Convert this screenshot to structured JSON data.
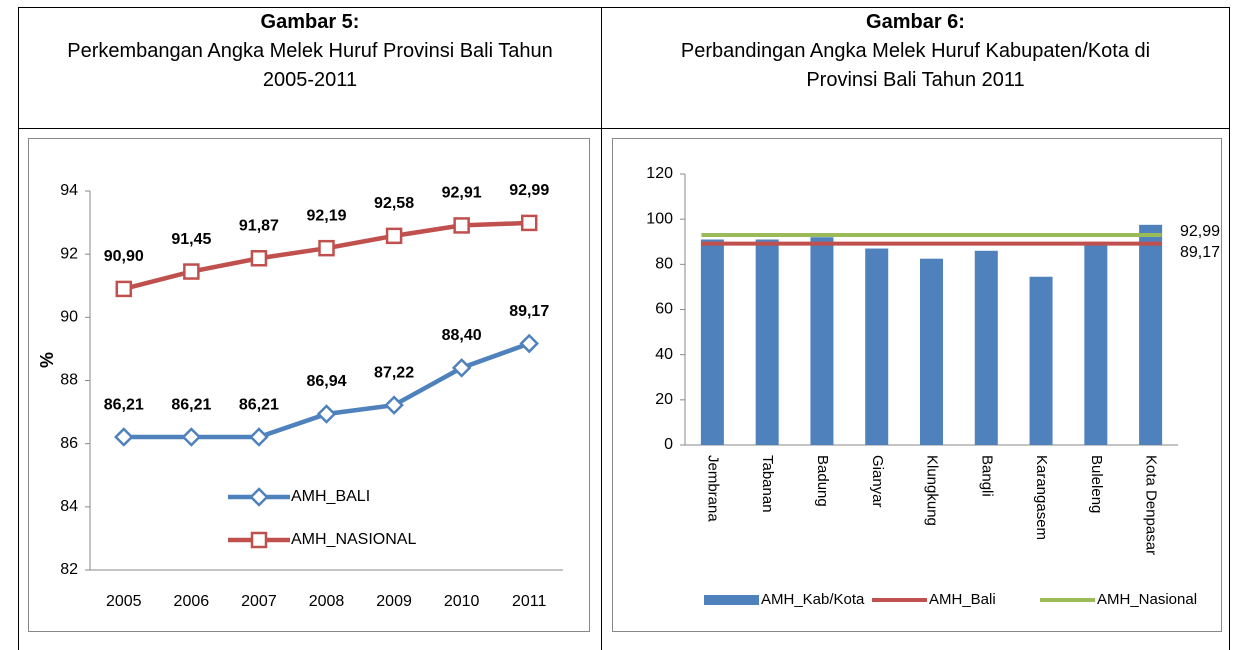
{
  "chart_data": [
    {
      "type": "line",
      "title": "Gambar 5:",
      "subtitle": "Perkembangan Angka Melek Huruf Provinsi Bali Tahun 2005-2011",
      "ylabel": "%",
      "categories": [
        "2005",
        "2006",
        "2007",
        "2008",
        "2009",
        "2010",
        "2011"
      ],
      "series": [
        {
          "name": "AMH_BALI",
          "color": "#4f81bd",
          "marker": "diamond",
          "values": [
            86.21,
            86.21,
            86.21,
            86.94,
            87.22,
            88.4,
            89.17
          ],
          "value_labels": [
            "86,21",
            "86,21",
            "86,21",
            "86,94",
            "87,22",
            "88,40",
            "89,17"
          ]
        },
        {
          "name": "AMH_NASIONAL",
          "color": "#c0504d",
          "marker": "square",
          "values": [
            90.9,
            91.45,
            91.87,
            92.19,
            92.58,
            92.91,
            92.99
          ],
          "value_labels": [
            "90,90",
            "91,45",
            "91,87",
            "92,19",
            "92,58",
            "92,91",
            "92,99"
          ]
        }
      ],
      "ylim": [
        82,
        94
      ],
      "yticks": [
        82,
        84,
        86,
        88,
        90,
        92,
        94
      ],
      "grid": false
    },
    {
      "type": "bar",
      "title": "Gambar 6:",
      "subtitle": "Perbandingan Angka Melek Huruf Kabupaten/Kota di Provinsi Bali Tahun 2011",
      "categories": [
        "Jembrana",
        "Tabanan",
        "Badung",
        "Gianyar",
        "Klungkung",
        "Bangli",
        "Karangasem",
        "Buleleng",
        "Kota Denpasar"
      ],
      "series": [
        {
          "name": "AMH_Kab/Kota",
          "color": "#4f81bd",
          "values": [
            91,
            91,
            92,
            87,
            82.5,
            86,
            74.5,
            90,
            97.5
          ]
        },
        {
          "name": "AMH_Bali",
          "color": "#c0504d",
          "value": 89.17,
          "value_label": "89,17"
        },
        {
          "name": "AMH_Nasional",
          "color": "#9bbb59",
          "value": 92.99,
          "value_label": "92,99"
        }
      ],
      "ylim": [
        0,
        120
      ],
      "yticks": [
        0,
        20,
        40,
        60,
        80,
        100,
        120
      ],
      "grid": false
    }
  ]
}
